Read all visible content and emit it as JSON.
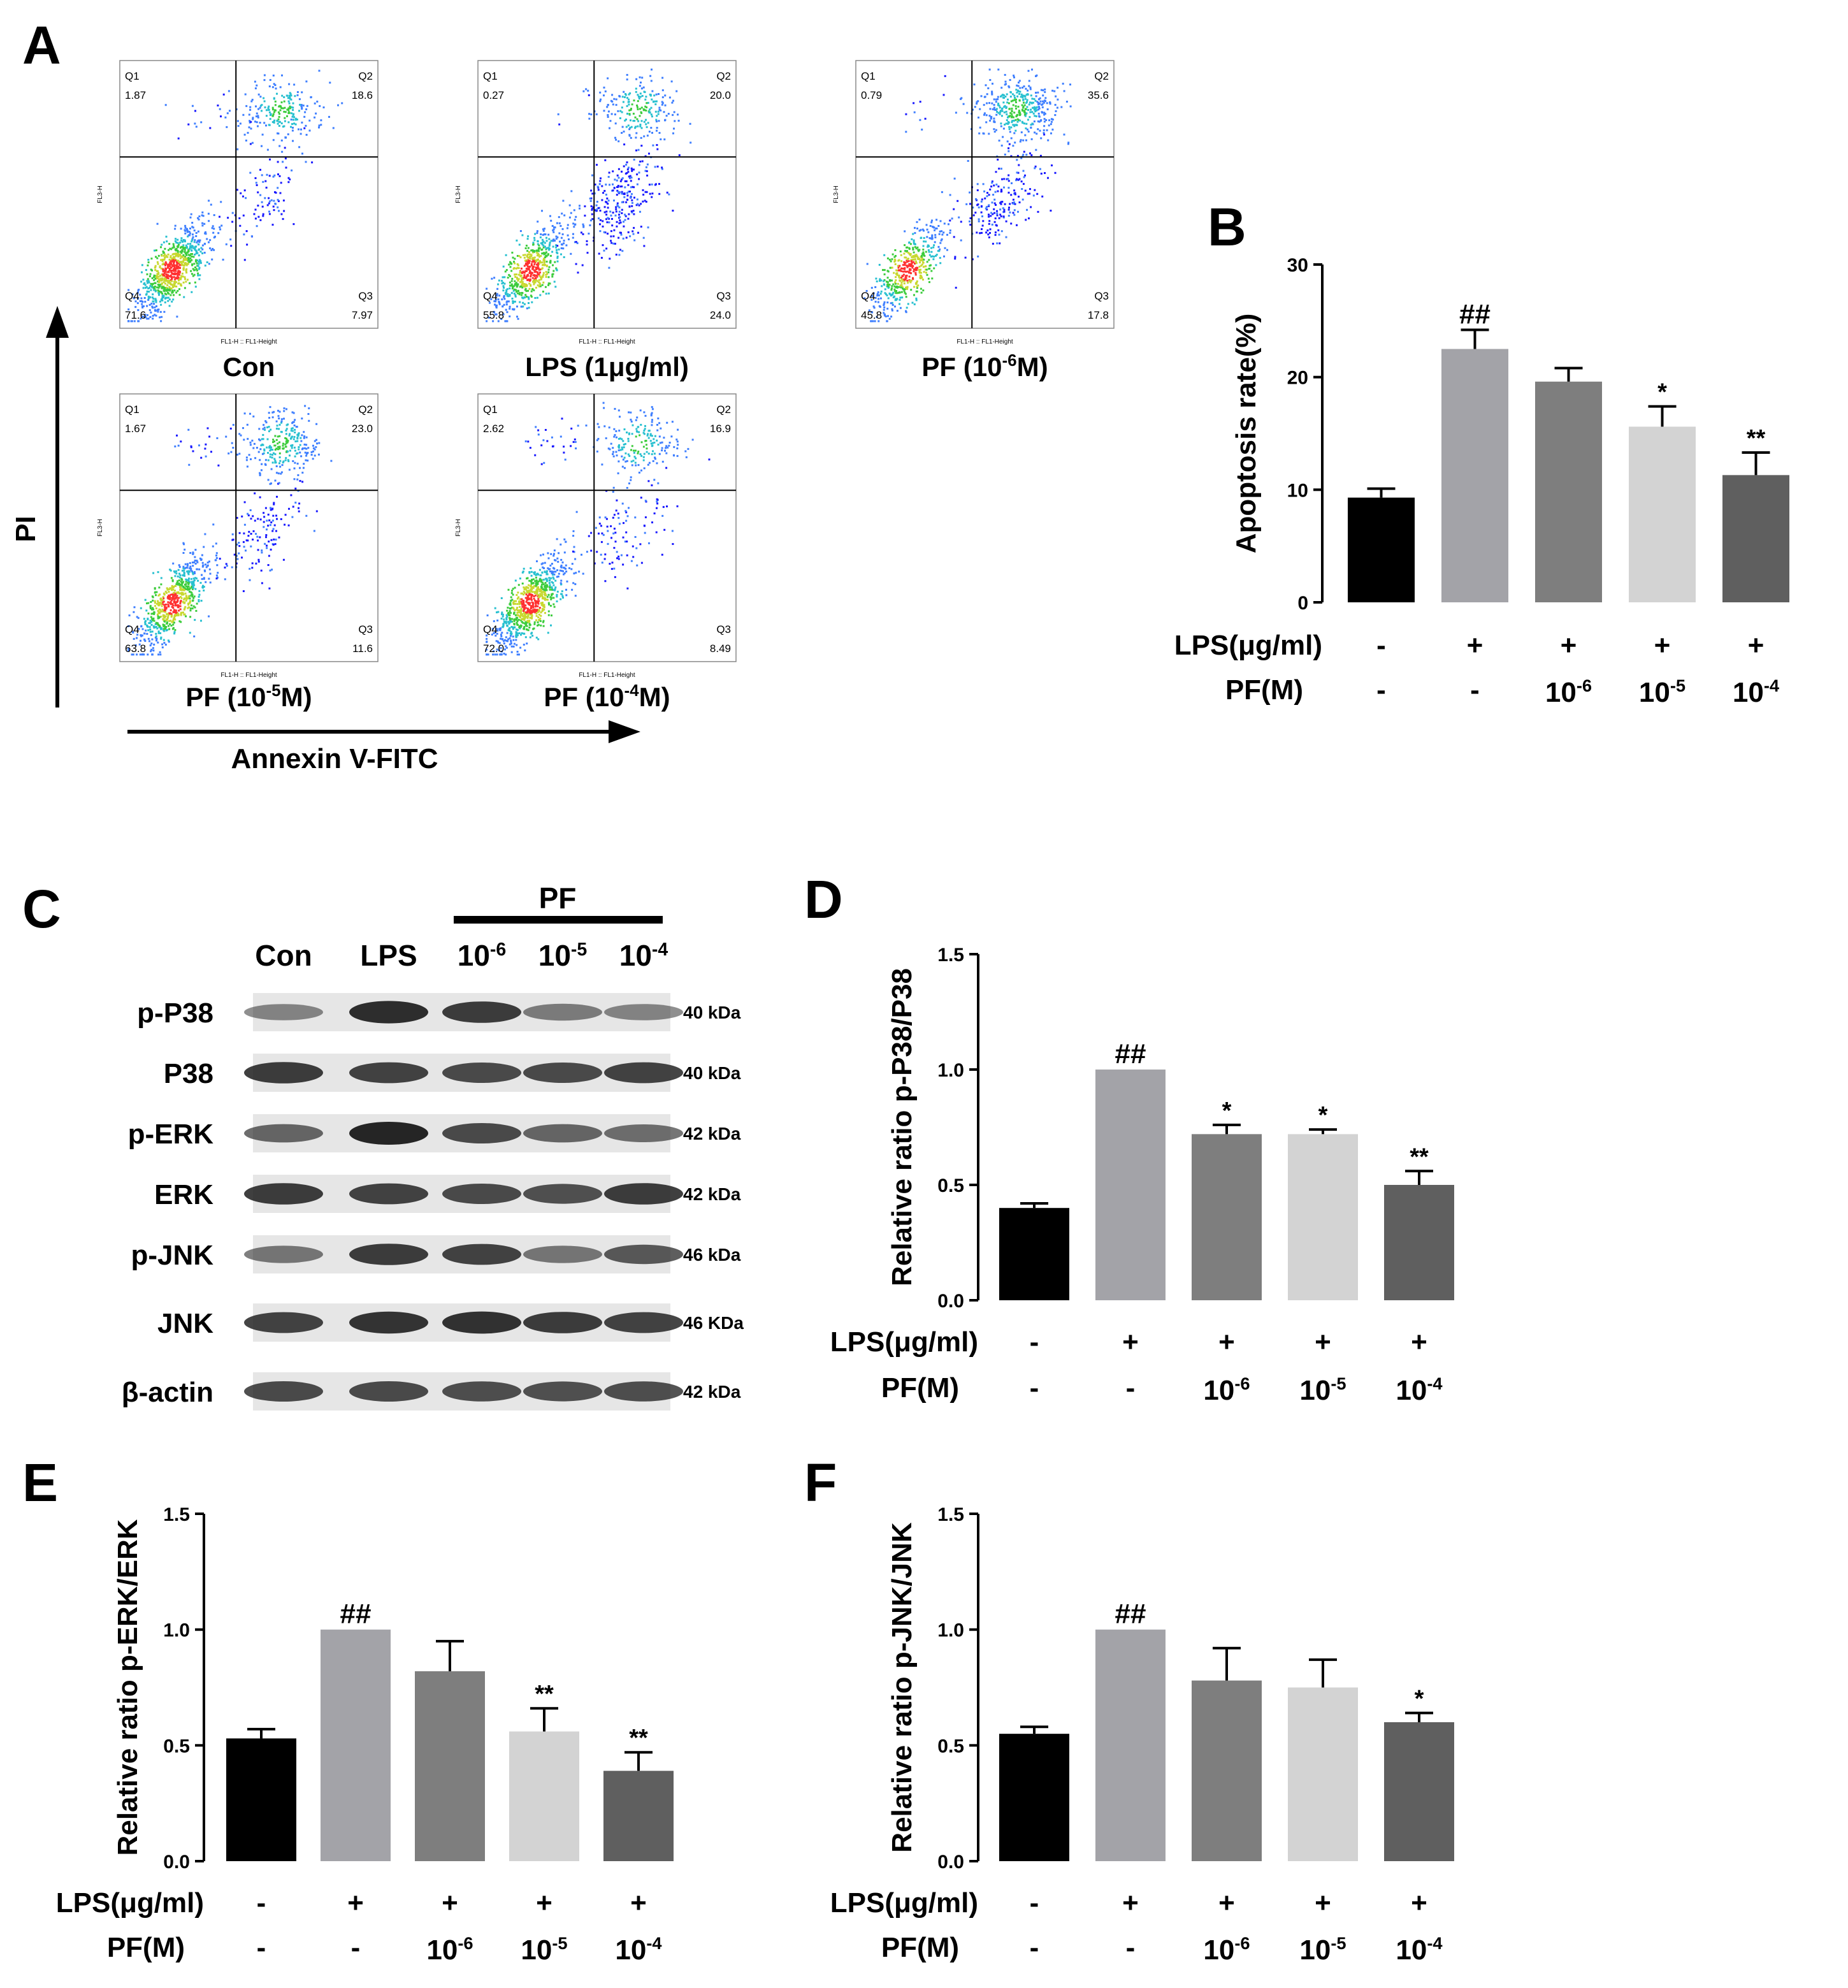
{
  "colors": {
    "bar_con": "#000000",
    "bar_lps": "#a3a3a8",
    "bar_pf6": "#7e7e7e",
    "bar_pf5": "#d3d3d3",
    "bar_pf4": "#5f5f5f"
  },
  "panel_labels": [
    "A",
    "B",
    "C",
    "D",
    "E",
    "F"
  ],
  "condition_rows": {
    "lps_label": "LPS(μg/ml)",
    "pf_label": "PF(M)",
    "lps_values": [
      "-",
      "+",
      "+",
      "+",
      "+"
    ],
    "pf_values": [
      "-",
      "-",
      "10",
      "10",
      "10"
    ],
    "pf_exponents": [
      "",
      "",
      "-6",
      "-5",
      "-4"
    ]
  },
  "flow": {
    "x_axis_label": "Annexin V-FITC",
    "y_axis_label": "PI",
    "fl_x_label": "FL1-H :: FL1-Height",
    "fl_y_label": "FL3-H",
    "plots": [
      {
        "name_base": "Con",
        "name_sup": "",
        "name_tail": "",
        "Q1": "1.87",
        "Q2": "18.6",
        "Q3": "7.97",
        "Q4": "71.6"
      },
      {
        "name_base": "LPS (1μg/ml)",
        "name_sup": "",
        "name_tail": "",
        "Q1": "0.27",
        "Q2": "20.0",
        "Q3": "24.0",
        "Q4": "55.8"
      },
      {
        "name_base": "PF (10",
        "name_sup": "-6",
        "name_tail": "M)",
        "Q1": "0.79",
        "Q2": "35.6",
        "Q3": "17.8",
        "Q4": "45.8"
      },
      {
        "name_base": "PF (10",
        "name_sup": "-5",
        "name_tail": "M)",
        "Q1": "1.67",
        "Q2": "23.0",
        "Q3": "11.6",
        "Q4": "63.8"
      },
      {
        "name_base": "PF (10",
        "name_sup": "-4",
        "name_tail": "M)",
        "Q1": "2.62",
        "Q2": "16.9",
        "Q3": "8.49",
        "Q4": "72.0"
      }
    ]
  },
  "blot": {
    "group_label": "PF",
    "lanes": [
      {
        "base": "Con",
        "sup": ""
      },
      {
        "base": "LPS",
        "sup": ""
      },
      {
        "base": "10",
        "sup": "-6"
      },
      {
        "base": "10",
        "sup": "-5"
      },
      {
        "base": "10",
        "sup": "-4"
      }
    ],
    "rows": [
      {
        "label": "p-P38",
        "kda": "40 kDa"
      },
      {
        "label": "P38",
        "kda": "40 kDa"
      },
      {
        "label": "p-ERK",
        "kda": "42 kDa"
      },
      {
        "label": "ERK",
        "kda": "42 kDa"
      },
      {
        "label": "p-JNK",
        "kda": "46 kDa"
      },
      {
        "label": "JNK",
        "kda": "46 KDa"
      },
      {
        "label": "β-actin",
        "kda": "42 kDa"
      }
    ]
  },
  "chart_data": [
    {
      "panel": "B",
      "type": "bar",
      "title": "",
      "ylabel": "Apoptosis rate(%)",
      "ylim": [
        0,
        30
      ],
      "yticks": [
        "0",
        "10",
        "20",
        "30"
      ],
      "values": [
        9.3,
        22.5,
        19.6,
        15.6,
        11.3
      ],
      "errors": [
        0.8,
        1.7,
        1.2,
        1.8,
        2.0
      ],
      "annotations": [
        "",
        "##",
        "",
        "*",
        "**"
      ]
    },
    {
      "panel": "D",
      "type": "bar",
      "title": "",
      "ylabel": "Relative ratio p-P38/P38",
      "ylim": [
        0,
        1.5
      ],
      "yticks": [
        "0.0",
        "0.5",
        "1.0",
        "1.5"
      ],
      "values": [
        0.4,
        1.0,
        0.72,
        0.72,
        0.5
      ],
      "errors": [
        0.02,
        0.0,
        0.04,
        0.02,
        0.06
      ],
      "annotations": [
        "",
        "##",
        "*",
        "*",
        "**"
      ]
    },
    {
      "panel": "E",
      "type": "bar",
      "title": "",
      "ylabel": "Relative ratio p-ERK/ERK",
      "ylim": [
        0,
        1.5
      ],
      "yticks": [
        "0.0",
        "0.5",
        "1.0",
        "1.5"
      ],
      "values": [
        0.53,
        1.0,
        0.82,
        0.56,
        0.39
      ],
      "errors": [
        0.04,
        0.0,
        0.13,
        0.1,
        0.08
      ],
      "annotations": [
        "",
        "##",
        "",
        "**",
        "**"
      ]
    },
    {
      "panel": "F",
      "type": "bar",
      "title": "",
      "ylabel": "Relative ratio p-JNK/JNK",
      "ylim": [
        0,
        1.5
      ],
      "yticks": [
        "0.0",
        "0.5",
        "1.0",
        "1.5"
      ],
      "values": [
        0.55,
        1.0,
        0.78,
        0.75,
        0.6
      ],
      "errors": [
        0.03,
        0.0,
        0.14,
        0.12,
        0.04
      ],
      "annotations": [
        "",
        "##",
        "",
        "",
        "*"
      ]
    }
  ]
}
